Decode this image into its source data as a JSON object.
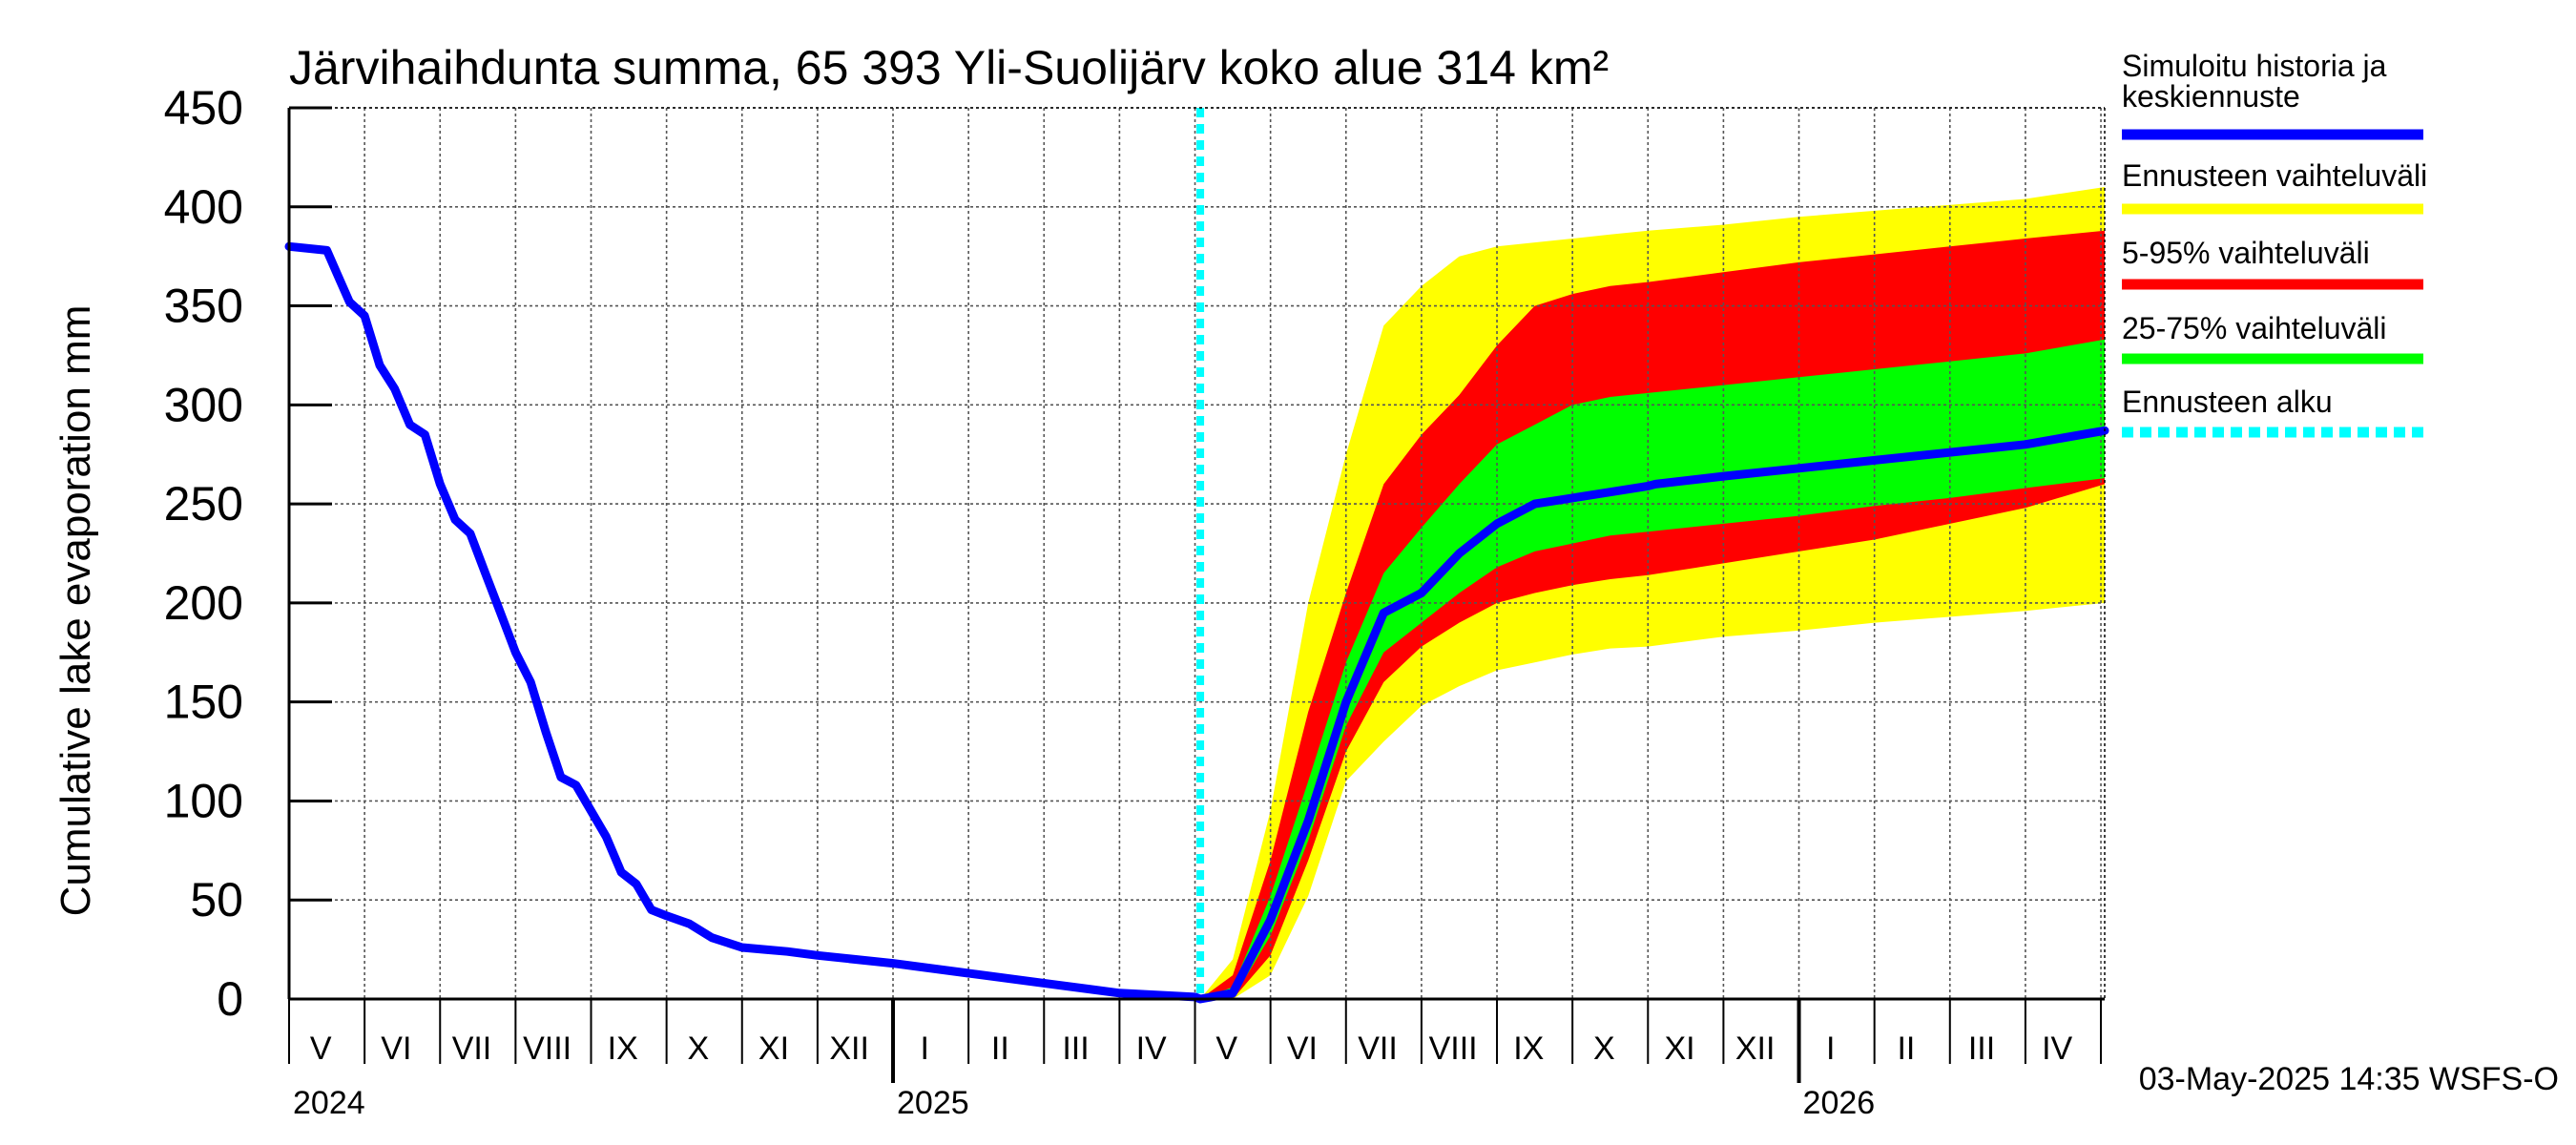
{
  "chart_data": {
    "type": "area",
    "title": "Järvihaihdunta summa, 65 393 Yli-Suolijärv koko alue 314 km²",
    "ylabel": "Cumulative lake evaporation   mm",
    "ylim": [
      0,
      450
    ],
    "yticks": [
      0,
      50,
      100,
      150,
      200,
      250,
      300,
      350,
      400,
      450
    ],
    "xlim_months": [
      0,
      24.05
    ],
    "month_labels": [
      "V",
      "VI",
      "VII",
      "VIII",
      "IX",
      "X",
      "XI",
      "XII",
      "I",
      "II",
      "III",
      "IV",
      "V",
      "VI",
      "VII",
      "VIII",
      "IX",
      "X",
      "XI",
      "XII",
      "I",
      "II",
      "III",
      "IV"
    ],
    "year_labels": [
      {
        "label": "2024",
        "month": 0
      },
      {
        "label": "2025",
        "month": 8
      },
      {
        "label": "2026",
        "month": 20
      }
    ],
    "forecast_start_month": 12.07,
    "timestamp": "03-May-2025 14:35 WSFS-O",
    "legend": [
      {
        "label": "Simuloitu historia ja",
        "label2": "keskiennuste",
        "color": "#0000ff",
        "style": "solid"
      },
      {
        "label": "Ennusteen vaihteluväli",
        "color": "#ffff00",
        "style": "solid"
      },
      {
        "label": "5-95% vaihteluväli",
        "color": "#ff0000",
        "style": "solid"
      },
      {
        "label": "25-75% vaihteluväli",
        "color": "#00ff00",
        "style": "solid"
      },
      {
        "label": "Ennusteen alku",
        "color": "#00ffff",
        "style": "dashed"
      }
    ],
    "series": [
      {
        "name": "Simuloitu historia ja keskiennuste",
        "color": "#0000ff",
        "x": [
          0,
          0.5,
          0.65,
          0.8,
          1.0,
          1.2,
          1.4,
          1.6,
          1.8,
          2.0,
          2.2,
          2.4,
          2.6,
          2.8,
          3.0,
          3.2,
          3.4,
          3.6,
          3.8,
          4.0,
          4.2,
          4.4,
          4.6,
          4.8,
          5.0,
          5.3,
          5.6,
          6.0,
          6.3,
          6.6,
          7.0,
          8.0,
          9.0,
          10.0,
          11.0,
          12.0,
          12.07,
          12.5,
          13.0,
          13.5,
          14.0,
          14.5,
          15.0,
          15.5,
          16.0,
          16.5,
          17.0,
          17.5,
          18.0,
          18.1,
          19.0,
          20.0,
          21.0,
          22.0,
          23.0,
          24.05
        ],
        "values": [
          380,
          378,
          365,
          352,
          345,
          320,
          308,
          290,
          285,
          260,
          242,
          235,
          215,
          195,
          175,
          160,
          135,
          112,
          108,
          95,
          82,
          64,
          58,
          45,
          42,
          38,
          31,
          26,
          25,
          24,
          22,
          18,
          13,
          8,
          3,
          1,
          0,
          3,
          40,
          90,
          150,
          195,
          205,
          225,
          240,
          250,
          253,
          256,
          259,
          260,
          264,
          268,
          272,
          276,
          280,
          287
        ]
      }
    ],
    "bands": [
      {
        "name": "Ennusteen vaihteluväli",
        "color": "#ffff00",
        "x": [
          12.07,
          12.5,
          13.0,
          13.5,
          14.0,
          14.5,
          15.0,
          15.5,
          16.0,
          16.5,
          17.0,
          17.5,
          18.0,
          19.0,
          20.0,
          21.0,
          22.0,
          23.0,
          24.05
        ],
        "upper": [
          0,
          20,
          95,
          200,
          275,
          340,
          360,
          375,
          380,
          382,
          384,
          386,
          388,
          391,
          395,
          398,
          401,
          404,
          410
        ],
        "lower": [
          0,
          0,
          12,
          52,
          110,
          130,
          148,
          158,
          166,
          170,
          174,
          177,
          178,
          183,
          186,
          190,
          193,
          196,
          200
        ]
      },
      {
        "name": "5-95% vaihteluväli",
        "color": "#ff0000",
        "x": [
          12.07,
          12.5,
          13.0,
          13.5,
          14.0,
          14.5,
          15.0,
          15.5,
          16.0,
          16.5,
          17.0,
          17.5,
          18.0,
          19.0,
          20.0,
          21.0,
          22.0,
          23.0,
          24.05
        ],
        "upper": [
          0,
          12,
          70,
          145,
          205,
          260,
          285,
          305,
          330,
          350,
          356,
          360,
          362,
          367,
          372,
          376,
          380,
          384,
          388
        ],
        "lower": [
          0,
          0,
          22,
          70,
          125,
          160,
          178,
          190,
          200,
          205,
          209,
          212,
          214,
          220,
          226,
          232,
          240,
          248,
          260
        ]
      },
      {
        "name": "25-75% vaihteluväli",
        "color": "#00ff00",
        "x": [
          12.07,
          12.5,
          13.0,
          13.5,
          14.0,
          14.5,
          15.0,
          15.5,
          16.0,
          16.5,
          17.0,
          17.5,
          18.0,
          19.0,
          20.0,
          21.0,
          22.0,
          23.0,
          24.05
        ],
        "upper": [
          0,
          6,
          52,
          110,
          170,
          215,
          238,
          260,
          280,
          290,
          300,
          304,
          306,
          310,
          314,
          318,
          322,
          326,
          333
        ],
        "lower": [
          0,
          0,
          32,
          80,
          138,
          175,
          190,
          205,
          218,
          226,
          230,
          234,
          236,
          240,
          244,
          249,
          253,
          258,
          263
        ]
      }
    ]
  }
}
